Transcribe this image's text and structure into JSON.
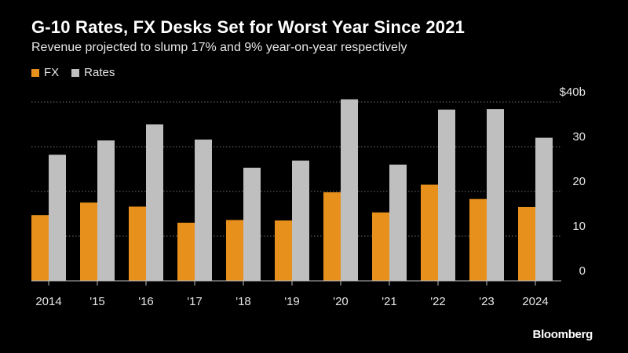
{
  "header": {
    "title": "G-10 Rates, FX Desks Set for Worst Year Since 2021",
    "subtitle": "Revenue projected to slump 17% and 9% year-on-year respectively"
  },
  "legend": {
    "items": [
      {
        "label": "FX",
        "color": "#e8901c"
      },
      {
        "label": "Rates",
        "color": "#bfbfbf"
      }
    ]
  },
  "footer": {
    "brand": "Bloomberg"
  },
  "chart_data": {
    "type": "bar",
    "title": "G-10 Rates, FX Desks Set for Worst Year Since 2021",
    "subtitle": "Revenue projected to slump 17% and 9% year-on-year respectively",
    "categories": [
      "2014",
      "'15",
      "'16",
      "'17",
      "'18",
      "'19",
      "'20",
      "'21",
      "'22",
      "'23",
      "2024"
    ],
    "series": [
      {
        "name": "FX",
        "color": "#e8901c",
        "values": [
          14.7,
          17.5,
          16.6,
          13.0,
          13.6,
          13.5,
          19.8,
          15.3,
          21.5,
          18.3,
          16.5
        ]
      },
      {
        "name": "Rates",
        "color": "#bfbfbf",
        "values": [
          28.2,
          31.4,
          35.0,
          31.6,
          25.3,
          26.9,
          40.6,
          26.0,
          38.3,
          38.4,
          32.0
        ]
      }
    ],
    "ylim": [
      0,
      40
    ],
    "yticks": [
      0,
      10,
      20,
      30,
      40
    ],
    "ytick_labels": [
      "0",
      "10",
      "20",
      "30",
      "$40b"
    ],
    "grid": true,
    "legend_position": "top-left",
    "xlabel": "",
    "ylabel": ""
  }
}
